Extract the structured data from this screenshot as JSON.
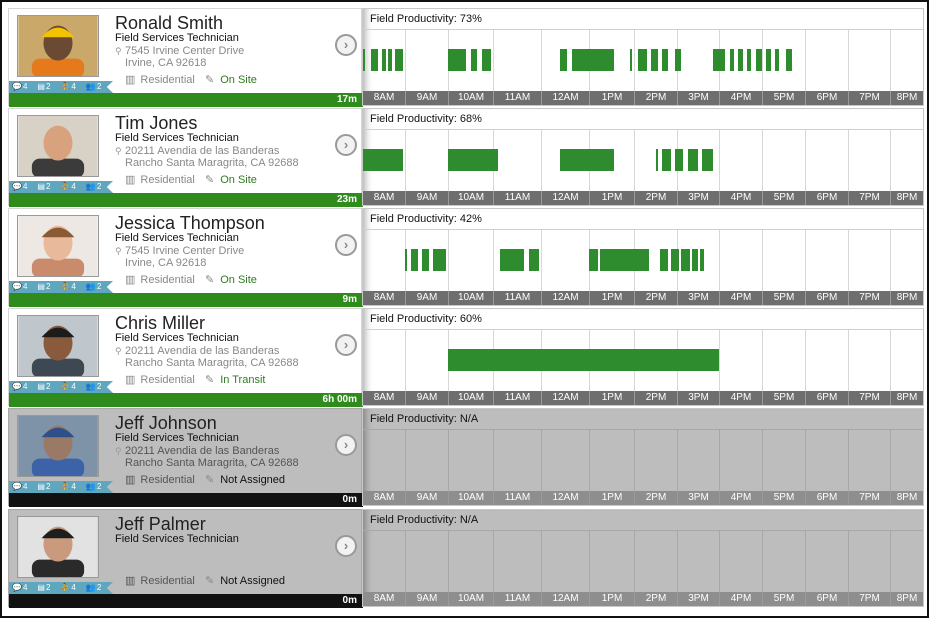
{
  "hours": [
    "8AM",
    "9AM",
    "10AM",
    "11AM",
    "12AM",
    "1PM",
    "2PM",
    "3PM",
    "4PM",
    "5PM",
    "6PM",
    "7PM",
    "8PM"
  ],
  "technicians": [
    {
      "name": "Ronald Smith",
      "role": "Field Services Technician",
      "address_line1": "7545 Irvine Center Drive",
      "address_line2": "Irvine, CA 92618",
      "location_type": "Residential",
      "status": "On Site",
      "status_class": "onsite",
      "counts": [
        "4",
        "2",
        "4",
        "2"
      ],
      "elapsed": "17m",
      "productivity": "Field Productivity: 73%",
      "active": true,
      "photo": {
        "bg": "#c9a86a",
        "skin": "#6b4a34",
        "shirt": "#e57a1c",
        "hat": "#f2c300"
      },
      "blocks": [
        [
          8.0,
          8.05
        ],
        [
          8.2,
          8.35
        ],
        [
          8.45,
          8.55
        ],
        [
          8.6,
          8.7
        ],
        [
          8.75,
          8.95
        ],
        [
          10.0,
          10.4
        ],
        [
          10.5,
          10.65
        ],
        [
          10.75,
          10.95
        ],
        [
          12.4,
          12.55
        ],
        [
          12.65,
          13.55
        ],
        [
          13.9,
          13.95
        ],
        [
          14.1,
          14.3
        ],
        [
          14.4,
          14.55
        ],
        [
          14.65,
          14.8
        ],
        [
          14.95,
          15.1
        ],
        [
          15.85,
          16.15
        ],
        [
          16.25,
          16.35
        ],
        [
          16.45,
          16.55
        ],
        [
          16.65,
          16.75
        ],
        [
          16.85,
          17.0
        ],
        [
          17.1,
          17.2
        ],
        [
          17.3,
          17.4
        ],
        [
          17.55,
          17.7
        ]
      ]
    },
    {
      "name": "Tim Jones",
      "role": "Field Services Technician",
      "address_line1": "20211 Avendia de las Banderas",
      "address_line2": "Rancho Santa Maragrita, CA 92688",
      "location_type": "Residential",
      "status": "On Site",
      "status_class": "onsite",
      "counts": [
        "4",
        "2",
        "4",
        "2"
      ],
      "elapsed": "23m",
      "productivity": "Field Productivity: 68%",
      "active": true,
      "photo": {
        "bg": "#d8d2c6",
        "skin": "#d9a27e",
        "shirt": "#3b3b3b",
        "hat": ""
      },
      "blocks": [
        [
          8.0,
          8.95
        ],
        [
          10.0,
          11.1
        ],
        [
          12.4,
          13.55
        ],
        [
          14.5,
          14.55
        ],
        [
          14.65,
          14.85
        ],
        [
          14.95,
          15.15
        ],
        [
          15.25,
          15.5
        ],
        [
          15.6,
          15.85
        ]
      ]
    },
    {
      "name": "Jessica Thompson",
      "role": "Field Services Technician",
      "address_line1": "7545 Irvine Center Drive",
      "address_line2": "Irvine, CA 92618",
      "location_type": "Residential",
      "status": "On Site",
      "status_class": "onsite",
      "counts": [
        "4",
        "2",
        "4",
        "2"
      ],
      "elapsed": "9m",
      "productivity": "Field Productivity: 42%",
      "active": true,
      "photo": {
        "bg": "#eee8e4",
        "skin": "#e9b99b",
        "shirt": "#c98b6b",
        "hat": "#8a5a34"
      },
      "blocks": [
        [
          9.0,
          9.05
        ],
        [
          9.15,
          9.3
        ],
        [
          9.4,
          9.55
        ],
        [
          9.65,
          9.95
        ],
        [
          11.15,
          11.65
        ],
        [
          11.75,
          11.95
        ],
        [
          13.0,
          13.2
        ],
        [
          13.25,
          14.35
        ],
        [
          14.6,
          14.8
        ],
        [
          14.85,
          15.05
        ],
        [
          15.1,
          15.3
        ],
        [
          15.35,
          15.5
        ],
        [
          15.55,
          15.65
        ]
      ]
    },
    {
      "name": "Chris Miller",
      "role": "Field Services Technician",
      "address_line1": "20211 Avendia de las Banderas",
      "address_line2": "Rancho Santa Maragrita, CA 92688",
      "location_type": "Residential",
      "status": "In Transit",
      "status_class": "transit",
      "counts": [
        "4",
        "2",
        "4",
        "2"
      ],
      "elapsed": "6h 00m",
      "productivity": "Field Productivity: 60%",
      "active": true,
      "photo": {
        "bg": "#bfc7cd",
        "skin": "#8a5a3c",
        "shirt": "#3e4852",
        "hat": "#1c1c1c"
      },
      "blocks": [
        [
          10.0,
          16.0
        ]
      ]
    },
    {
      "name": "Jeff Johnson",
      "role": "Field Services Technician",
      "address_line1": "20211 Avendia de las Banderas",
      "address_line2": "Rancho Santa Maragrita, CA 92688",
      "location_type": "Residential",
      "status": "Not Assigned",
      "status_class": "notassigned",
      "counts": [
        "4",
        "2",
        "4",
        "2"
      ],
      "elapsed": "0m",
      "productivity": "Field Productivity: N/A",
      "active": false,
      "photo": {
        "bg": "#7e93a8",
        "skin": "#9a7a66",
        "shirt": "#3c62a8",
        "hat": "#2f4f88"
      },
      "blocks": []
    },
    {
      "name": "Jeff Palmer",
      "role": "Field Services Technician",
      "address_line1": "",
      "address_line2": "",
      "location_type": "Residential",
      "status": "Not Assigned",
      "status_class": "notassigned",
      "counts": [
        "4",
        "2",
        "4",
        "2"
      ],
      "elapsed": "0m",
      "productivity": "Field Productivity:  N/A",
      "active": false,
      "photo": {
        "bg": "#e2e2e2",
        "skin": "#c99a7e",
        "shirt": "#2a2a2a",
        "hat": "#1e1e1e"
      },
      "blocks": []
    }
  ],
  "icons": {
    "chevron": "›",
    "pin": "⚲",
    "building": "▥",
    "note": "✎",
    "ribbon": [
      "💬",
      "▤",
      "⛹",
      "👥"
    ]
  }
}
